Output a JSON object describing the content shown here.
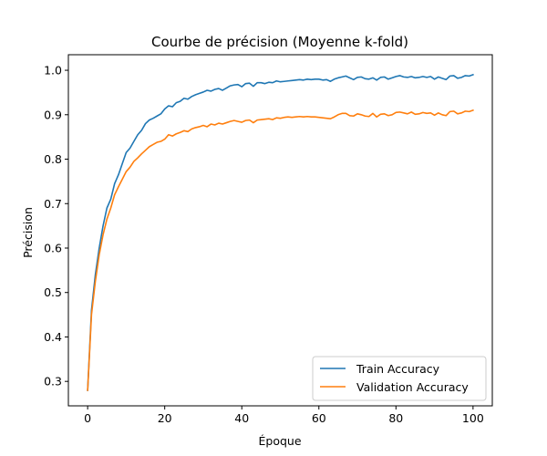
{
  "chart_data": {
    "type": "line",
    "title": "Courbe de précision (Moyenne k-fold)",
    "xlabel": "Époque",
    "ylabel": "Précision",
    "xlim": [
      -5,
      105
    ],
    "ylim": [
      0.245,
      1.035
    ],
    "xticks": [
      0,
      20,
      40,
      60,
      80,
      100
    ],
    "yticks": [
      0.3,
      0.4,
      0.5,
      0.6,
      0.7,
      0.8,
      0.9,
      1.0
    ],
    "xtick_labels": [
      "0",
      "20",
      "40",
      "60",
      "80",
      "100"
    ],
    "ytick_labels": [
      "0.3",
      "0.4",
      "0.5",
      "0.6",
      "0.7",
      "0.8",
      "0.9",
      "1.0"
    ],
    "grid": false,
    "legend_position": "lower-right",
    "series": [
      {
        "name": "Train Accuracy",
        "color": "#1f77b4",
        "values": [
          0.28,
          0.46,
          0.54,
          0.6,
          0.65,
          0.69,
          0.71,
          0.745,
          0.765,
          0.79,
          0.815,
          0.825,
          0.84,
          0.855,
          0.865,
          0.88,
          0.888,
          0.892,
          0.897,
          0.902,
          0.913,
          0.92,
          0.918,
          0.927,
          0.93,
          0.937,
          0.935,
          0.941,
          0.945,
          0.948,
          0.951,
          0.955,
          0.953,
          0.957,
          0.959,
          0.955,
          0.96,
          0.965,
          0.967,
          0.968,
          0.963,
          0.97,
          0.971,
          0.964,
          0.972,
          0.972,
          0.97,
          0.973,
          0.972,
          0.976,
          0.974,
          0.975,
          0.976,
          0.977,
          0.978,
          0.979,
          0.978,
          0.98,
          0.979,
          0.98,
          0.98,
          0.978,
          0.979,
          0.975,
          0.98,
          0.983,
          0.985,
          0.987,
          0.983,
          0.979,
          0.984,
          0.985,
          0.981,
          0.98,
          0.983,
          0.978,
          0.984,
          0.985,
          0.98,
          0.983,
          0.986,
          0.988,
          0.985,
          0.984,
          0.986,
          0.983,
          0.984,
          0.986,
          0.984,
          0.986,
          0.98,
          0.985,
          0.982,
          0.979,
          0.987,
          0.988,
          0.982,
          0.984,
          0.988,
          0.987,
          0.99
        ]
      },
      {
        "name": "Validation Accuracy",
        "color": "#ff7f0e",
        "values": [
          0.28,
          0.45,
          0.525,
          0.585,
          0.63,
          0.665,
          0.69,
          0.72,
          0.738,
          0.755,
          0.772,
          0.782,
          0.795,
          0.803,
          0.812,
          0.82,
          0.828,
          0.833,
          0.838,
          0.84,
          0.845,
          0.855,
          0.852,
          0.857,
          0.86,
          0.864,
          0.862,
          0.868,
          0.871,
          0.873,
          0.876,
          0.873,
          0.879,
          0.877,
          0.881,
          0.879,
          0.882,
          0.885,
          0.887,
          0.885,
          0.883,
          0.887,
          0.888,
          0.882,
          0.888,
          0.889,
          0.89,
          0.891,
          0.889,
          0.893,
          0.892,
          0.894,
          0.895,
          0.894,
          0.895,
          0.896,
          0.895,
          0.896,
          0.895,
          0.895,
          0.894,
          0.893,
          0.892,
          0.891,
          0.895,
          0.9,
          0.903,
          0.903,
          0.898,
          0.897,
          0.902,
          0.9,
          0.897,
          0.896,
          0.903,
          0.895,
          0.901,
          0.902,
          0.898,
          0.9,
          0.905,
          0.906,
          0.904,
          0.902,
          0.906,
          0.901,
          0.902,
          0.905,
          0.903,
          0.904,
          0.899,
          0.904,
          0.9,
          0.898,
          0.907,
          0.908,
          0.902,
          0.904,
          0.908,
          0.907,
          0.91
        ]
      }
    ]
  }
}
